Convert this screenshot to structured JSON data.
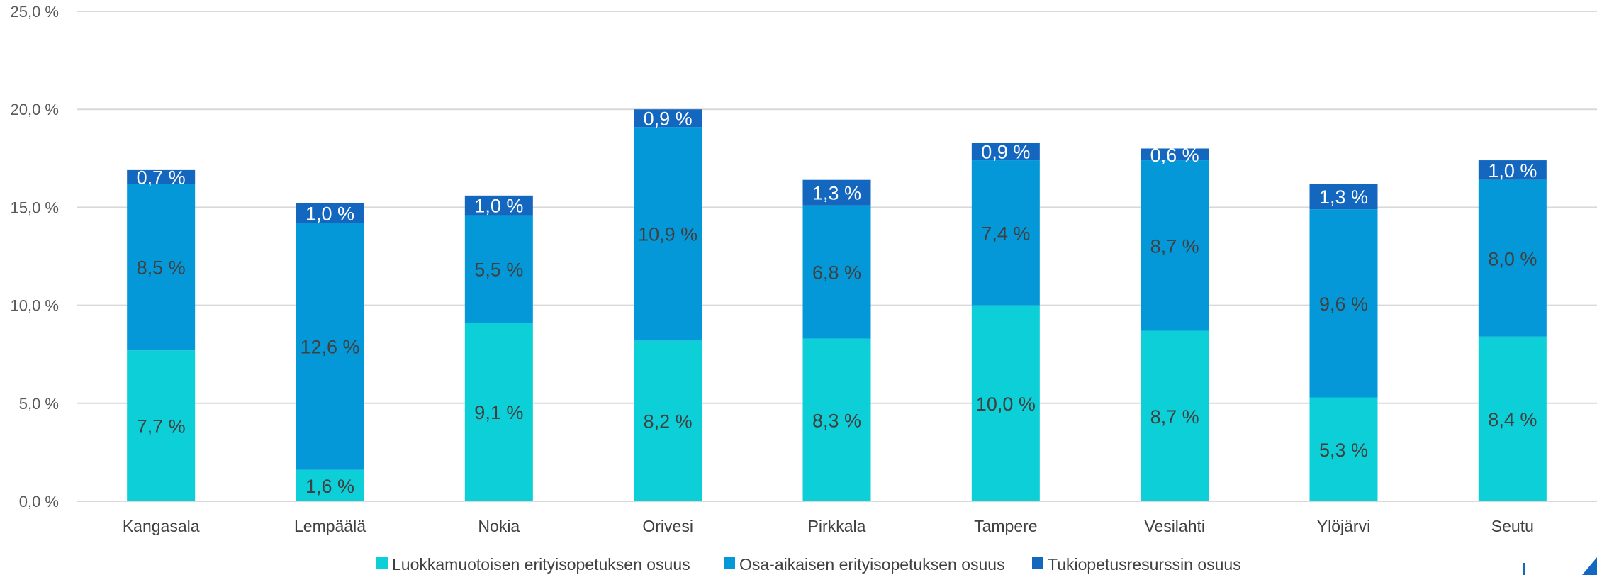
{
  "chart_data": {
    "type": "bar",
    "stacked": true,
    "categories": [
      "Kangasala",
      "Lempäälä",
      "Nokia",
      "Orivesi",
      "Pirkkala",
      "Tampere",
      "Vesilahti",
      "Ylöjärvi",
      "Seutu"
    ],
    "series": [
      {
        "name": "Luokkamuotoisen erityisopetuksen osuus",
        "color": "#0ccfd8",
        "values": [
          7.7,
          1.6,
          9.1,
          8.2,
          8.3,
          10.0,
          8.7,
          5.3,
          8.4
        ],
        "labels": [
          "7,7 %",
          "1,6 %",
          "9,1 %",
          "8,2 %",
          "8,3 %",
          "10,0 %",
          "8,7 %",
          "5,3 %",
          "8,4 %"
        ]
      },
      {
        "name": "Osa-aikaisen erityisopetuksen osuus",
        "color": "#0598d9",
        "values": [
          8.5,
          12.6,
          5.5,
          10.9,
          6.8,
          7.4,
          8.7,
          9.6,
          8.0
        ],
        "labels": [
          "8,5 %",
          "12,6 %",
          "5,5 %",
          "10,9 %",
          "6,8 %",
          "7,4 %",
          "8,7 %",
          "9,6 %",
          "8,0 %"
        ]
      },
      {
        "name": "Tukiopetusresurssin osuus",
        "color": "#1467bf",
        "values": [
          0.7,
          1.0,
          1.0,
          0.9,
          1.3,
          0.9,
          0.6,
          1.3,
          1.0
        ],
        "labels": [
          "0,7 %",
          "1,0 %",
          "1,0 %",
          "0,9 %",
          "1,3 %",
          "0,9 %",
          "0,6 %",
          "1,3 %",
          "1,0 %"
        ]
      }
    ],
    "y_ticks": [
      0,
      5,
      10,
      15,
      20,
      25
    ],
    "y_tick_labels": [
      "0,0 %",
      "5,0 %",
      "10,0 %",
      "15,0 %",
      "20,0 %",
      "25,0 %"
    ],
    "ylim": [
      0,
      25
    ],
    "grid": true,
    "legend_position": "bottom"
  }
}
